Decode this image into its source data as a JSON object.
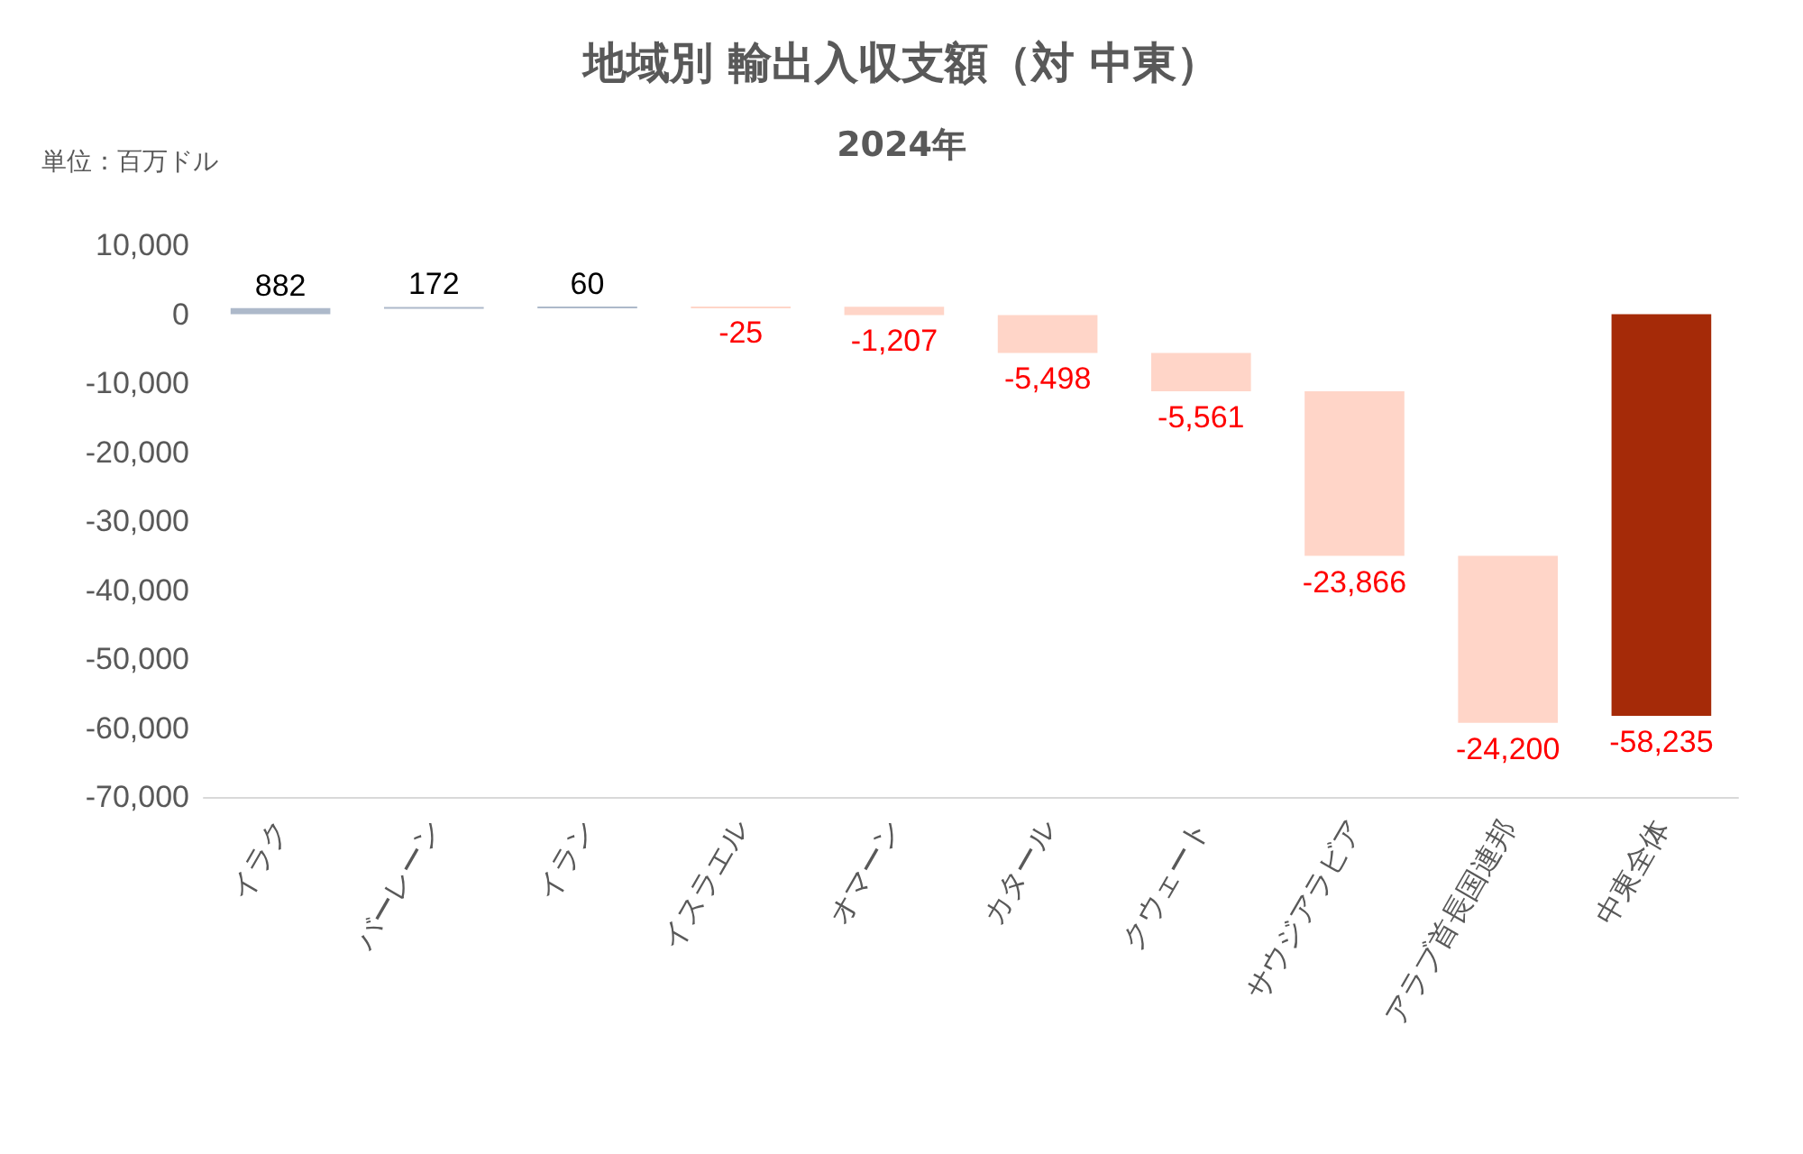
{
  "chart_data": {
    "type": "bar",
    "title": "地域別 輸出入収支額（対 中東）",
    "subtitle": "2024年",
    "annotations": [
      "単位：百万ドル"
    ],
    "categories": [
      "イラク",
      "バーレーン",
      "イラン",
      "イスラエル",
      "オマーン",
      "カタール",
      "クウェート",
      "サウジアラビア",
      "アラブ首長国連邦",
      "中東全体"
    ],
    "values": [
      882,
      172,
      60,
      -25,
      -1207,
      -5498,
      -5561,
      -23866,
      -24200,
      -58235
    ],
    "value_labels": [
      "882",
      "172",
      "60",
      "-25",
      "-1,207",
      "-5,498",
      "-5,561",
      "-23,866",
      "-24,200",
      "-58,235"
    ],
    "base": [
      0,
      882,
      1054,
      1114,
      1089,
      -118,
      -5616,
      -11177,
      -35043,
      0
    ],
    "colors": [
      "#adb9ca",
      "#adb9ca",
      "#adb9ca",
      "#ffd5c8",
      "#ffd5c8",
      "#ffd5c8",
      "#ffd5c8",
      "#ffd5c8",
      "#ffd5c8",
      "#a52a08"
    ],
    "ylim": [
      -70000,
      10000
    ],
    "yticks": [
      {
        "value": -70000,
        "label": "-70,000"
      },
      {
        "value": -60000,
        "label": "-60,000"
      },
      {
        "value": -50000,
        "label": "-50,000"
      },
      {
        "value": -40000,
        "label": "-40,000"
      },
      {
        "value": -30000,
        "label": "-30,000"
      },
      {
        "value": -20000,
        "label": "-20,000"
      },
      {
        "value": -10000,
        "label": "-10,000"
      },
      0,
      {
        "value": 10000,
        "label": "10,000"
      }
    ],
    "grid": false
  }
}
